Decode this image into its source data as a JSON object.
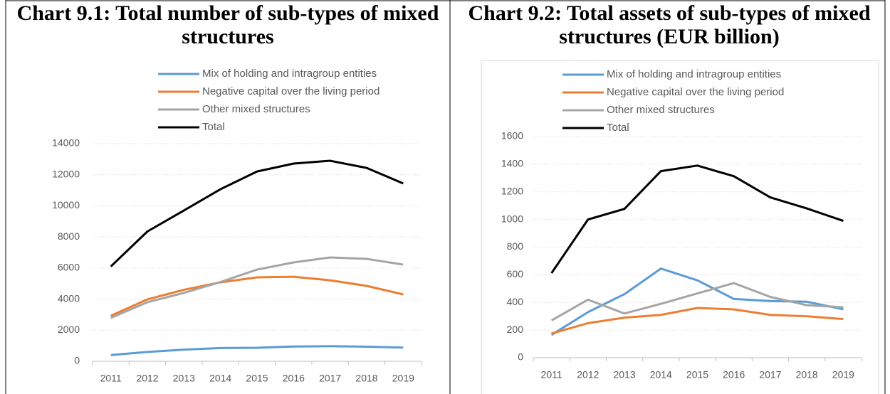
{
  "chart_data": [
    {
      "type": "line",
      "title": "Chart 9.1: Total number of sub-types of mixed structures",
      "categories": [
        "2011",
        "2012",
        "2013",
        "2014",
        "2015",
        "2016",
        "2017",
        "2018",
        "2019"
      ],
      "series": [
        {
          "name": "Mix of holding and intragroup entities",
          "color": "#5b9bd5",
          "values": [
            400,
            600,
            750,
            850,
            870,
            950,
            970,
            940,
            880
          ]
        },
        {
          "name": "Negative capital over the living period",
          "color": "#ed7d31",
          "values": [
            2930,
            3980,
            4600,
            5080,
            5400,
            5440,
            5210,
            4850,
            4300
          ]
        },
        {
          "name": "Other mixed structures",
          "color": "#a5a5a5",
          "values": [
            2790,
            3800,
            4400,
            5100,
            5900,
            6360,
            6680,
            6590,
            6220
          ]
        },
        {
          "name": "Total",
          "color": "#000000",
          "values": [
            6100,
            8350,
            9700,
            11070,
            12210,
            12720,
            12900,
            12440,
            11440
          ]
        }
      ],
      "ylim": [
        0,
        14000
      ],
      "yticks": [
        0,
        2000,
        4000,
        6000,
        8000,
        10000,
        12000,
        14000
      ],
      "grid": true,
      "legend": "top"
    },
    {
      "type": "line",
      "title": "Chart 9.2: Total assets of sub-types of mixed structures (EUR billion)",
      "categories": [
        "2011",
        "2012",
        "2013",
        "2014",
        "2015",
        "2016",
        "2017",
        "2018",
        "2019"
      ],
      "series": [
        {
          "name": "Mix of holding and intragroup entities",
          "color": "#5b9bd5",
          "values": [
            165,
            330,
            460,
            645,
            560,
            425,
            410,
            405,
            350
          ]
        },
        {
          "name": "Negative capital over the living period",
          "color": "#ed7d31",
          "values": [
            175,
            250,
            290,
            310,
            360,
            350,
            310,
            300,
            280
          ]
        },
        {
          "name": "Other mixed structures",
          "color": "#a5a5a5",
          "values": [
            270,
            420,
            320,
            390,
            465,
            540,
            440,
            380,
            365
          ]
        },
        {
          "name": "Total",
          "color": "#000000",
          "values": [
            612,
            1000,
            1077,
            1350,
            1390,
            1313,
            1160,
            1080,
            990
          ]
        }
      ],
      "ylim": [
        0,
        1600
      ],
      "yticks": [
        0,
        200,
        400,
        600,
        800,
        1000,
        1200,
        1400,
        1600
      ],
      "grid": true,
      "legend": "top"
    }
  ]
}
